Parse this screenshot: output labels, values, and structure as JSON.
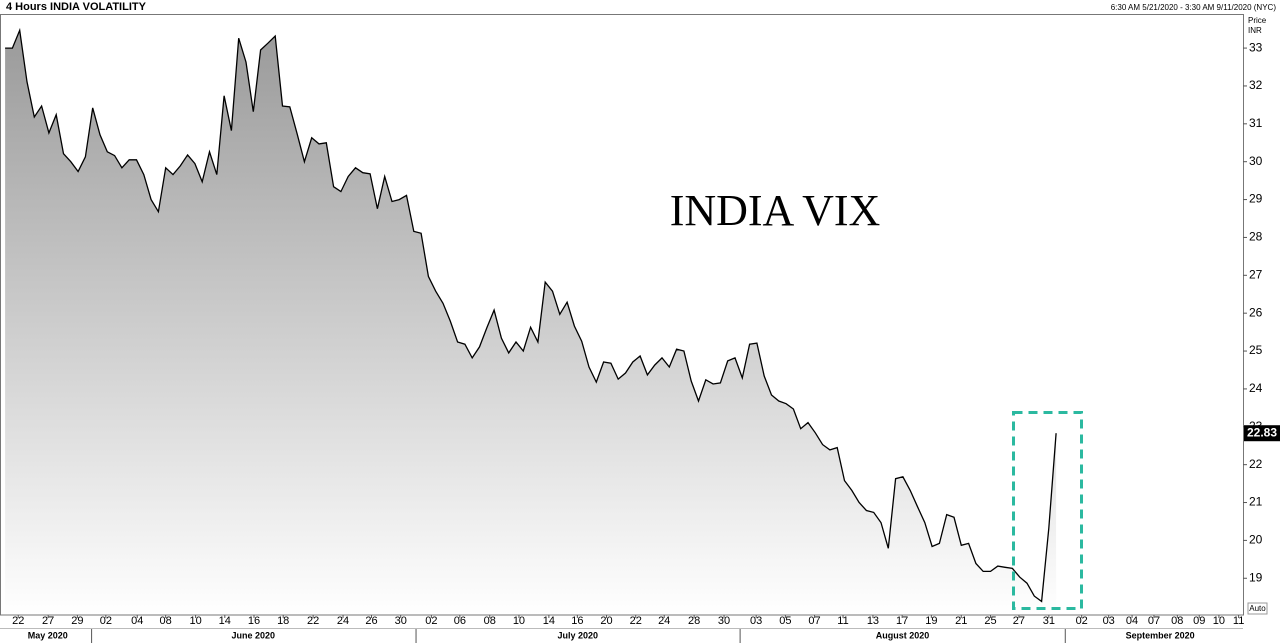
{
  "chart_data": {
    "type": "area",
    "title": "4 Hours INDIA VOLATILITY",
    "date_range": "6:30 AM 5/21/2020 - 3:30 AM 9/11/2020 (NYC)",
    "y_axis_title": [
      "Price",
      "INR"
    ],
    "annotation": "INDIA VIX",
    "auto_label": "Auto",
    "grid": false,
    "xlim": [
      -0.7,
      169.6
    ],
    "ylim": [
      18.03,
      33.9
    ],
    "yticks": [
      19,
      20,
      21,
      22,
      23,
      24,
      25,
      26,
      27,
      28,
      29,
      30,
      31,
      32,
      33
    ],
    "xtick_groups": [
      {
        "month": "May 2020",
        "ticks": [
          {
            "value": 1.8,
            "label": "22"
          },
          {
            "value": 5.9,
            "label": "27"
          },
          {
            "value": 9.9,
            "label": "29"
          }
        ]
      },
      {
        "month": "June 2020",
        "ticks": [
          {
            "value": 13.8,
            "label": "02"
          },
          {
            "value": 18.1,
            "label": "04"
          },
          {
            "value": 22.0,
            "label": "08"
          },
          {
            "value": 26.1,
            "label": "10"
          },
          {
            "value": 30.1,
            "label": "14"
          },
          {
            "value": 34.1,
            "label": "16"
          },
          {
            "value": 38.1,
            "label": "18"
          },
          {
            "value": 42.2,
            "label": "22"
          },
          {
            "value": 46.3,
            "label": "24"
          },
          {
            "value": 50.2,
            "label": "26"
          },
          {
            "value": 54.2,
            "label": "30"
          }
        ]
      },
      {
        "month": "July 2020",
        "ticks": [
          {
            "value": 58.4,
            "label": "02"
          },
          {
            "value": 62.3,
            "label": "06"
          },
          {
            "value": 66.4,
            "label": "08"
          },
          {
            "value": 70.4,
            "label": "10"
          },
          {
            "value": 74.5,
            "label": "14"
          },
          {
            "value": 78.4,
            "label": "16"
          },
          {
            "value": 82.4,
            "label": "20"
          },
          {
            "value": 86.4,
            "label": "22"
          },
          {
            "value": 90.3,
            "label": "24"
          },
          {
            "value": 94.4,
            "label": "28"
          },
          {
            "value": 98.5,
            "label": "30"
          }
        ]
      },
      {
        "month": "August 2020",
        "ticks": [
          {
            "value": 102.9,
            "label": "03"
          },
          {
            "value": 106.9,
            "label": "05"
          },
          {
            "value": 110.9,
            "label": "07"
          },
          {
            "value": 114.8,
            "label": "11"
          },
          {
            "value": 118.9,
            "label": "13"
          },
          {
            "value": 122.9,
            "label": "17"
          },
          {
            "value": 126.9,
            "label": "19"
          },
          {
            "value": 131.0,
            "label": "21"
          },
          {
            "value": 135.0,
            "label": "25"
          },
          {
            "value": 138.9,
            "label": "27"
          },
          {
            "value": 143.0,
            "label": "31"
          }
        ]
      },
      {
        "month": "September 2020",
        "ticks": [
          {
            "value": 147.5,
            "label": "02"
          },
          {
            "value": 151.2,
            "label": "03"
          },
          {
            "value": 154.4,
            "label": "04"
          },
          {
            "value": 157.4,
            "label": "07"
          },
          {
            "value": 160.6,
            "label": "08"
          },
          {
            "value": 163.6,
            "label": "09"
          },
          {
            "value": 166.3,
            "label": "10"
          },
          {
            "value": 169.0,
            "label": "11"
          }
        ]
      }
    ],
    "series": [
      {
        "name": "INDIA VOLATILITY",
        "color": "#000000",
        "fill_top": "#9a9a9a",
        "fill_bottom": "#ffffff",
        "values": [
          33.0,
          33.0,
          33.47,
          32.11,
          31.18,
          31.47,
          30.76,
          31.24,
          30.21,
          30.0,
          29.74,
          30.13,
          31.42,
          30.71,
          30.26,
          30.16,
          29.84,
          30.05,
          30.05,
          29.66,
          29.0,
          28.68,
          29.84,
          29.66,
          29.89,
          30.18,
          29.95,
          29.47,
          30.26,
          29.66,
          31.74,
          30.82,
          33.26,
          32.63,
          31.32,
          32.95,
          33.13,
          33.32,
          31.47,
          31.45,
          30.74,
          30.0,
          30.63,
          30.47,
          30.5,
          29.34,
          29.21,
          29.61,
          29.84,
          29.71,
          29.68,
          28.76,
          29.61,
          28.95,
          29.0,
          29.11,
          28.16,
          28.11,
          26.97,
          26.58,
          26.26,
          25.79,
          25.24,
          25.18,
          24.82,
          25.11,
          25.61,
          26.08,
          25.34,
          24.95,
          25.24,
          25.0,
          25.63,
          25.24,
          26.82,
          26.58,
          25.97,
          26.29,
          25.66,
          25.26,
          24.58,
          24.18,
          24.71,
          24.68,
          24.26,
          24.42,
          24.71,
          24.87,
          24.37,
          24.63,
          24.82,
          24.58,
          25.05,
          25.0,
          24.21,
          23.68,
          24.24,
          24.13,
          24.16,
          24.74,
          24.82,
          24.29,
          25.18,
          25.21,
          24.34,
          23.84,
          23.68,
          23.61,
          23.47,
          22.95,
          23.11,
          22.84,
          22.53,
          22.39,
          22.45,
          21.58,
          21.32,
          21.0,
          20.79,
          20.74,
          20.47,
          19.79,
          21.63,
          21.68,
          21.32,
          20.89,
          20.47,
          19.84,
          19.92,
          20.68,
          20.61,
          19.87,
          19.92,
          19.39,
          19.18,
          19.18,
          19.32,
          19.29,
          19.26,
          19.03,
          18.87,
          18.53,
          18.39,
          20.32,
          22.83
        ]
      }
    ]
  }
}
